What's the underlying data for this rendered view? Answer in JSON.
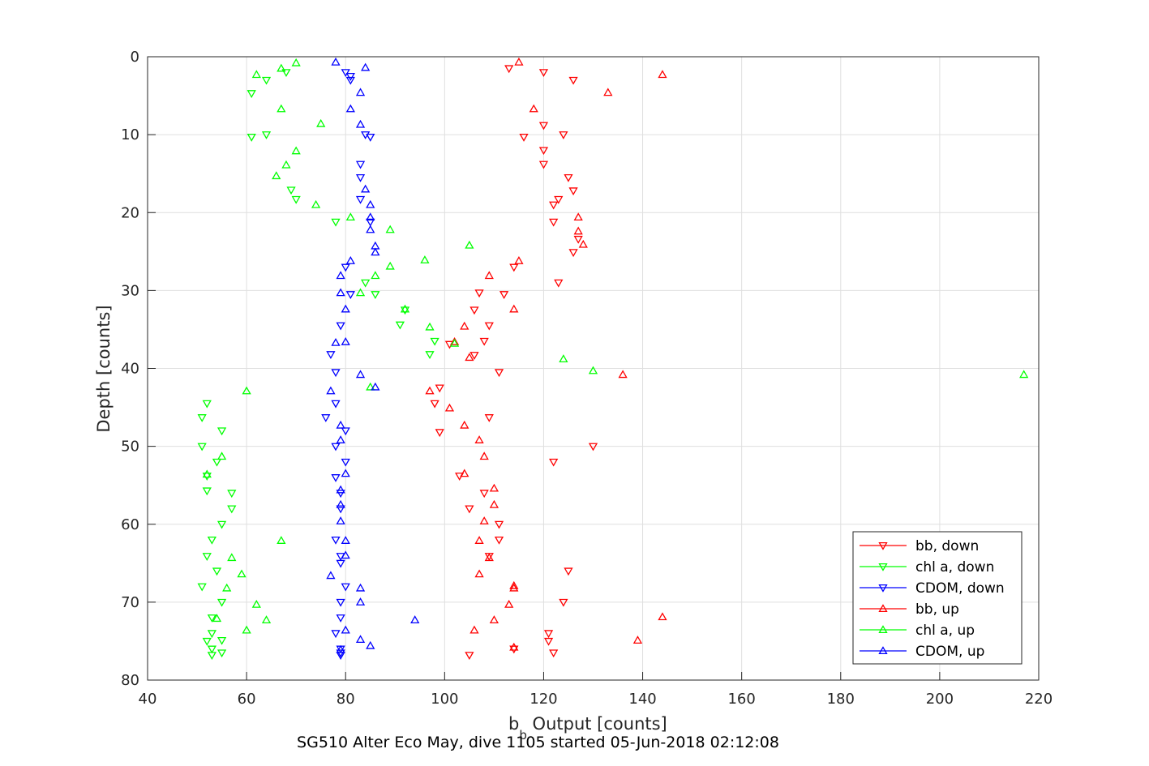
{
  "chart_data": {
    "type": "scatter",
    "title": "",
    "xlabel": "b",
    "xlabel_sub": "b",
    "xlabel_rest": " Output [counts]",
    "ylabel": "Depth [counts]",
    "caption": "SG510 Alter Eco May, dive 1105 started 05-Jun-2018 02:12:08",
    "xlim": [
      40,
      220
    ],
    "ylim": [
      0,
      80
    ],
    "y_reversed": true,
    "xticks": [
      "40",
      "60",
      "80",
      "100",
      "120",
      "140",
      "160",
      "180",
      "200",
      "220"
    ],
    "yticks": [
      "0",
      "10",
      "20",
      "30",
      "40",
      "50",
      "60",
      "70",
      "80"
    ],
    "grid": true,
    "legend_position": "bottom-right",
    "series": [
      {
        "name": "bb, down",
        "color": "#ff0000",
        "marker": "triangle-down",
        "points": [
          [
            113,
            1.5
          ],
          [
            120,
            2
          ],
          [
            126,
            3
          ],
          [
            124,
            10
          ],
          [
            116,
            10.3
          ],
          [
            120,
            8.8
          ],
          [
            120,
            12
          ],
          [
            120,
            13.8
          ],
          [
            125,
            15.5
          ],
          [
            126,
            17.2
          ],
          [
            123,
            18.3
          ],
          [
            122,
            19
          ],
          [
            122,
            21.2
          ],
          [
            127,
            23.4
          ],
          [
            126,
            25.1
          ],
          [
            114,
            27
          ],
          [
            123,
            29
          ],
          [
            112,
            30.5
          ],
          [
            107,
            30.3
          ],
          [
            106,
            32.5
          ],
          [
            109,
            34.5
          ],
          [
            108,
            36.5
          ],
          [
            106,
            38.3
          ],
          [
            101,
            36.9
          ],
          [
            111,
            40.5
          ],
          [
            99,
            42.5
          ],
          [
            98,
            44.5
          ],
          [
            109,
            46.3
          ],
          [
            99,
            48.2
          ],
          [
            130,
            50
          ],
          [
            122,
            52
          ],
          [
            103,
            53.8
          ],
          [
            108,
            56
          ],
          [
            105,
            58
          ],
          [
            111,
            60
          ],
          [
            111,
            62
          ],
          [
            109,
            64.1
          ],
          [
            125,
            66
          ],
          [
            124,
            70
          ],
          [
            121,
            74
          ],
          [
            121,
            75
          ],
          [
            122,
            76.5
          ],
          [
            105,
            76.8
          ],
          [
            114,
            76
          ]
        ]
      },
      {
        "name": "chl a, down",
        "color": "#00ff00",
        "marker": "triangle-down",
        "points": [
          [
            68,
            2
          ],
          [
            64,
            3
          ],
          [
            61,
            4.7
          ],
          [
            64,
            10
          ],
          [
            61,
            10.3
          ],
          [
            69,
            17.1
          ],
          [
            70,
            18.3
          ],
          [
            78,
            21.2
          ],
          [
            84,
            29
          ],
          [
            86,
            30.5
          ],
          [
            92,
            32.5
          ],
          [
            91,
            34.4
          ],
          [
            98,
            36.5
          ],
          [
            97,
            38.2
          ],
          [
            52,
            44.5
          ],
          [
            51,
            46.3
          ],
          [
            55,
            48
          ],
          [
            51,
            50
          ],
          [
            54,
            52
          ],
          [
            52,
            53.8
          ],
          [
            52,
            55.7
          ],
          [
            57,
            56
          ],
          [
            57,
            58
          ],
          [
            55,
            60
          ],
          [
            53,
            62
          ],
          [
            52,
            64.1
          ],
          [
            54,
            66
          ],
          [
            51,
            68
          ],
          [
            55,
            70
          ],
          [
            53,
            72
          ],
          [
            53,
            74
          ],
          [
            55,
            74.9
          ],
          [
            52,
            75
          ],
          [
            53,
            76
          ],
          [
            55,
            76.5
          ],
          [
            53,
            76.8
          ]
        ]
      },
      {
        "name": "CDOM, down",
        "color": "#0000ff",
        "marker": "triangle-down",
        "points": [
          [
            80,
            2
          ],
          [
            81,
            2.5
          ],
          [
            81,
            3
          ],
          [
            84,
            10
          ],
          [
            85,
            10.3
          ],
          [
            83,
            13.8
          ],
          [
            83,
            15.5
          ],
          [
            83,
            18.3
          ],
          [
            85,
            21.2
          ],
          [
            80,
            27
          ],
          [
            81,
            30.5
          ],
          [
            79,
            34.5
          ],
          [
            77,
            38.2
          ],
          [
            78,
            40.5
          ],
          [
            78,
            44.5
          ],
          [
            76,
            46.3
          ],
          [
            80,
            48
          ],
          [
            78,
            50
          ],
          [
            80,
            52
          ],
          [
            78,
            54
          ],
          [
            79,
            56
          ],
          [
            79,
            58
          ],
          [
            78,
            62
          ],
          [
            79,
            64.1
          ],
          [
            79,
            65
          ],
          [
            80,
            68
          ],
          [
            79,
            70
          ],
          [
            79,
            72
          ],
          [
            78,
            74
          ],
          [
            79,
            76
          ],
          [
            79,
            76.5
          ],
          [
            79,
            76.8
          ]
        ]
      },
      {
        "name": "bb, up",
        "color": "#ff0000",
        "marker": "triangle-up",
        "points": [
          [
            115,
            0.7
          ],
          [
            144,
            2.3
          ],
          [
            133,
            4.6
          ],
          [
            118,
            6.7
          ],
          [
            127,
            20.6
          ],
          [
            127,
            22.4
          ],
          [
            128,
            24.1
          ],
          [
            115,
            26.2
          ],
          [
            109,
            28.1
          ],
          [
            114,
            32.4
          ],
          [
            104,
            34.6
          ],
          [
            102,
            36.6
          ],
          [
            105,
            38.6
          ],
          [
            136,
            40.8
          ],
          [
            97,
            42.9
          ],
          [
            101,
            45.1
          ],
          [
            104,
            47.3
          ],
          [
            107,
            49.2
          ],
          [
            108,
            51.3
          ],
          [
            104,
            53.5
          ],
          [
            110,
            55.4
          ],
          [
            110,
            57.5
          ],
          [
            108,
            59.6
          ],
          [
            107,
            62.1
          ],
          [
            109,
            64.3
          ],
          [
            107,
            66.4
          ],
          [
            114,
            68.2
          ],
          [
            113,
            70.3
          ],
          [
            110,
            72.3
          ],
          [
            106,
            73.6
          ],
          [
            139,
            74.9
          ],
          [
            114,
            75.8
          ],
          [
            144,
            71.9
          ],
          [
            114,
            67.9
          ]
        ]
      },
      {
        "name": "chl a, up",
        "color": "#00ff00",
        "marker": "triangle-up",
        "points": [
          [
            70,
            0.8
          ],
          [
            67,
            1.5
          ],
          [
            62,
            2.3
          ],
          [
            67,
            6.7
          ],
          [
            75,
            8.6
          ],
          [
            70,
            12.1
          ],
          [
            68,
            13.9
          ],
          [
            66,
            15.3
          ],
          [
            74,
            19
          ],
          [
            81,
            20.6
          ],
          [
            89,
            22.2
          ],
          [
            105,
            24.2
          ],
          [
            96,
            26.1
          ],
          [
            89,
            26.9
          ],
          [
            86,
            28.1
          ],
          [
            83,
            30.3
          ],
          [
            92,
            32.4
          ],
          [
            97,
            34.7
          ],
          [
            102,
            36.8
          ],
          [
            124,
            38.8
          ],
          [
            130,
            40.3
          ],
          [
            217,
            40.8
          ],
          [
            60,
            42.9
          ],
          [
            85,
            42.4
          ],
          [
            55,
            51.3
          ],
          [
            52,
            53.6
          ],
          [
            67,
            62.1
          ],
          [
            57,
            64.3
          ],
          [
            59,
            66.4
          ],
          [
            56,
            68.2
          ],
          [
            62,
            70.3
          ],
          [
            64,
            72.3
          ],
          [
            60,
            73.6
          ],
          [
            54,
            72.1
          ]
        ]
      },
      {
        "name": "CDOM, up",
        "color": "#0000ff",
        "marker": "triangle-up",
        "points": [
          [
            78,
            0.7
          ],
          [
            84,
            1.4
          ],
          [
            83,
            4.6
          ],
          [
            81,
            6.7
          ],
          [
            83,
            8.7
          ],
          [
            84,
            17
          ],
          [
            85,
            19
          ],
          [
            85,
            20.6
          ],
          [
            85,
            22.2
          ],
          [
            86,
            24.3
          ],
          [
            86,
            25.1
          ],
          [
            81,
            26.2
          ],
          [
            79,
            28.1
          ],
          [
            79,
            30.3
          ],
          [
            80,
            32.4
          ],
          [
            80,
            36.6
          ],
          [
            78,
            36.7
          ],
          [
            83,
            40.8
          ],
          [
            86,
            42.4
          ],
          [
            77,
            42.9
          ],
          [
            79,
            47.3
          ],
          [
            79,
            49.2
          ],
          [
            80,
            53.5
          ],
          [
            79,
            55.6
          ],
          [
            79,
            57.5
          ],
          [
            79,
            59.6
          ],
          [
            80,
            62.1
          ],
          [
            80,
            64
          ],
          [
            77,
            66.6
          ],
          [
            83,
            68.2
          ],
          [
            83,
            70
          ],
          [
            94,
            72.3
          ],
          [
            83,
            74.8
          ],
          [
            85,
            75.6
          ],
          [
            80,
            73.6
          ],
          [
            79,
            76.1
          ]
        ]
      }
    ]
  }
}
